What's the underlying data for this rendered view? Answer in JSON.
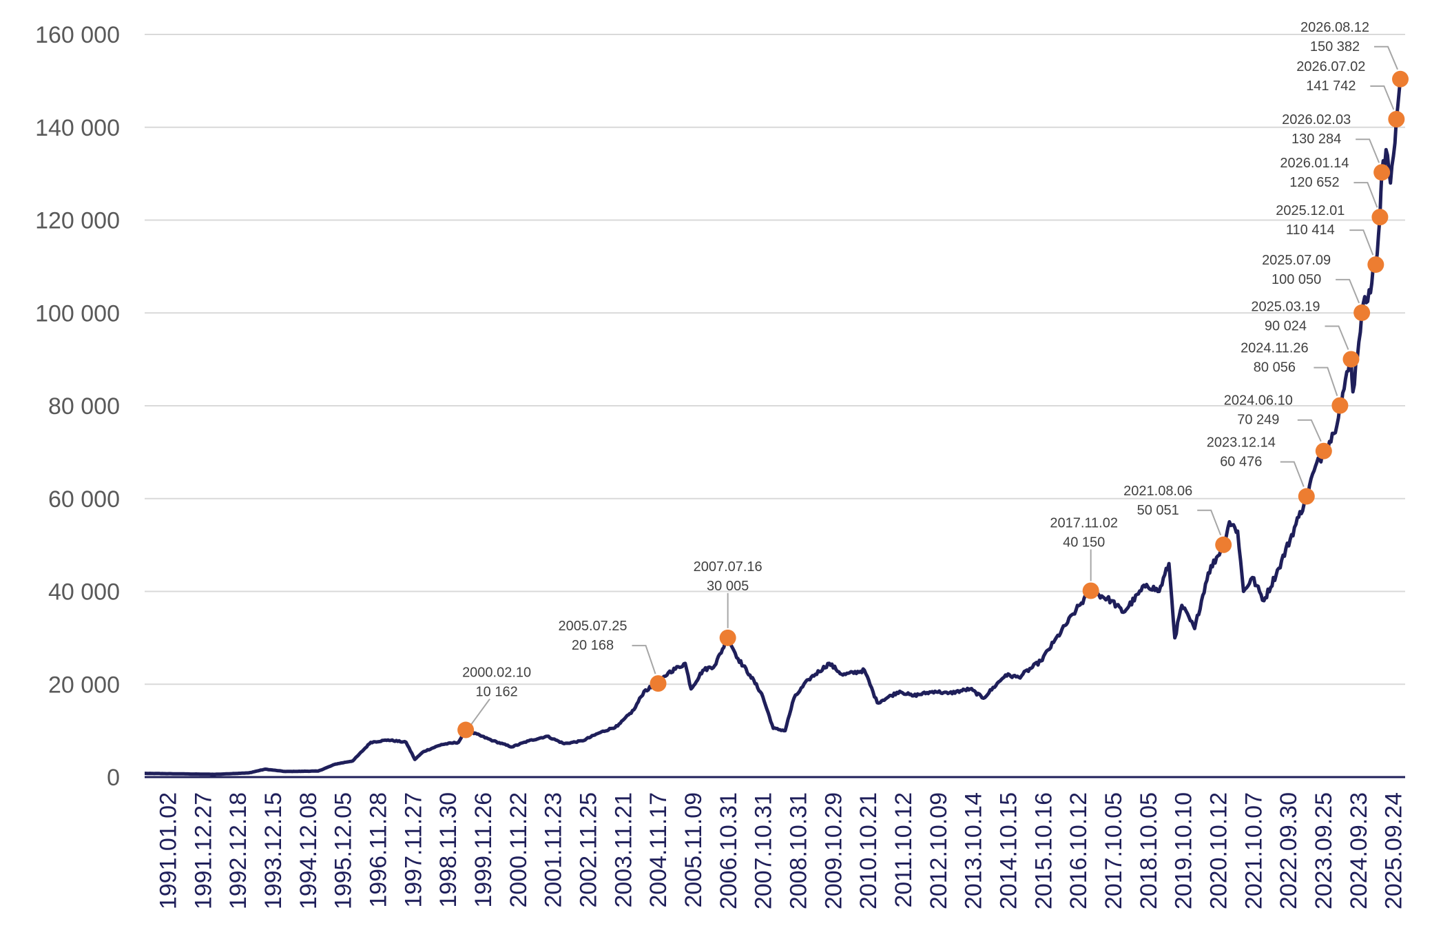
{
  "colors": {
    "line": "#1f1f5a",
    "marker": "#ed7d31",
    "grid": "#d9d9d9",
    "ytick_text": "#595959",
    "xtick_text": "#1f1f5a",
    "annotation_text": "#404040",
    "leader": "#a6a6a6"
  },
  "chart_data": {
    "type": "line",
    "title": "",
    "xlabel": "",
    "ylabel": "",
    "ylim": [
      0,
      160000
    ],
    "grid": true,
    "legend": "none",
    "y_ticks": [
      0,
      20000,
      40000,
      60000,
      80000,
      100000,
      120000,
      140000,
      160000
    ],
    "y_tick_labels": [
      "0",
      "20 000",
      "40 000",
      "60 000",
      "80 000",
      "100 000",
      "120 000",
      "140 000",
      "160 000"
    ],
    "x_tick_labels": [
      "1991.01.02",
      "1991.12.27",
      "1992.12.18",
      "1993.12.15",
      "1994.12.08",
      "1995.12.05",
      "1996.11.28",
      "1997.11.27",
      "1998.11.30",
      "1999.11.26",
      "2000.11.22",
      "2001.11.23",
      "2002.11.25",
      "2003.11.21",
      "2004.11.17",
      "2005.11.09",
      "2006.10.31",
      "2007.10.31",
      "2008.10.31",
      "2009.10.29",
      "2010.10.21",
      "2011.10.12",
      "2012.10.09",
      "2013.10.14",
      "2014.10.15",
      "2015.10.16",
      "2016.10.12",
      "2017.10.05",
      "2018.10.05",
      "2019.10.10",
      "2020.10.12",
      "2021.10.07",
      "2022.09.30",
      "2023.09.25",
      "2024.09.23",
      "2025.09.24"
    ],
    "series": [
      {
        "values": [
          [
            "1991.01.02",
            800
          ],
          [
            "1992.01.01",
            700
          ],
          [
            "1993.01.01",
            600
          ],
          [
            "1993.12.15",
            900
          ],
          [
            "1994.06.01",
            1700
          ],
          [
            "1995.01.01",
            1200
          ],
          [
            "1995.12.05",
            1300
          ],
          [
            "1996.06.01",
            2800
          ],
          [
            "1996.11.28",
            3500
          ],
          [
            "1997.06.01",
            7500
          ],
          [
            "1997.11.27",
            8000
          ],
          [
            "1998.06.01",
            7500
          ],
          [
            "1998.09.01",
            3800
          ],
          [
            "1998.11.30",
            5500
          ],
          [
            "1999.06.01",
            7000
          ],
          [
            "1999.11.26",
            7500
          ],
          [
            "2000.02.10",
            10162
          ],
          [
            "2000.11.22",
            7800
          ],
          [
            "2001.06.01",
            6500
          ],
          [
            "2001.11.23",
            7800
          ],
          [
            "2002.06.01",
            8800
          ],
          [
            "2002.11.25",
            7200
          ],
          [
            "2003.06.01",
            7800
          ],
          [
            "2003.11.21",
            9500
          ],
          [
            "2004.06.01",
            11000
          ],
          [
            "2004.11.17",
            14500
          ],
          [
            "2005.03.01",
            18500
          ],
          [
            "2005.07.25",
            20168
          ],
          [
            "2005.11.09",
            22500
          ],
          [
            "2006.05.01",
            24500
          ],
          [
            "2006.07.01",
            19000
          ],
          [
            "2006.10.31",
            23000
          ],
          [
            "2007.03.01",
            24000
          ],
          [
            "2007.07.16",
            30005
          ],
          [
            "2007.10.31",
            25500
          ],
          [
            "2008.03.01",
            22000
          ],
          [
            "2008.07.01",
            18000
          ],
          [
            "2008.10.31",
            10500
          ],
          [
            "2009.03.01",
            10000
          ],
          [
            "2009.06.01",
            17000
          ],
          [
            "2009.10.29",
            21000
          ],
          [
            "2010.06.01",
            24500
          ],
          [
            "2010.10.21",
            22000
          ],
          [
            "2011.06.01",
            23000
          ],
          [
            "2011.10.12",
            16000
          ],
          [
            "2012.06.01",
            18500
          ],
          [
            "2012.10.09",
            17500
          ],
          [
            "2013.06.01",
            18500
          ],
          [
            "2013.10.14",
            18000
          ],
          [
            "2014.06.01",
            19000
          ],
          [
            "2014.10.15",
            17000
          ],
          [
            "2015.06.01",
            22000
          ],
          [
            "2015.10.16",
            21500
          ],
          [
            "2016.06.01",
            25000
          ],
          [
            "2016.10.12",
            29000
          ],
          [
            "2017.06.01",
            36000
          ],
          [
            "2017.11.02",
            40150
          ],
          [
            "2018.06.01",
            38000
          ],
          [
            "2018.10.05",
            35500
          ],
          [
            "2019.06.01",
            41500
          ],
          [
            "2019.10.10",
            40000
          ],
          [
            "2020.01.20",
            46000
          ],
          [
            "2020.03.20",
            30000
          ],
          [
            "2020.06.01",
            37000
          ],
          [
            "2020.10.12",
            32000
          ],
          [
            "2021.03.01",
            44000
          ],
          [
            "2021.08.06",
            50051
          ],
          [
            "2021.10.07",
            55000
          ],
          [
            "2022.01.01",
            53000
          ],
          [
            "2022.03.01",
            40000
          ],
          [
            "2022.06.01",
            43000
          ],
          [
            "2022.09.30",
            38000
          ],
          [
            "2023.03.01",
            45000
          ],
          [
            "2023.09.25",
            56000
          ],
          [
            "2023.12.14",
            60476
          ],
          [
            "2024.03.01",
            66000
          ],
          [
            "2024.06.10",
            70249
          ],
          [
            "2024.09.23",
            74000
          ],
          [
            "2024.11.26",
            80056
          ],
          [
            "2025.03.19",
            90024
          ],
          [
            "2025.04.08",
            83000
          ],
          [
            "2025.07.09",
            100050
          ],
          [
            "2025.09.24",
            105000
          ],
          [
            "2025.12.01",
            110414
          ],
          [
            "2026.01.14",
            120652
          ],
          [
            "2026.02.03",
            130284
          ],
          [
            "2026.04.01",
            134000
          ],
          [
            "2026.05.01",
            128000
          ],
          [
            "2026.07.02",
            141742
          ],
          [
            "2026.08.12",
            150382
          ]
        ]
      }
    ],
    "annotations": [
      {
        "date": "2000.02.10",
        "value": "10 162",
        "y": 10162
      },
      {
        "date": "2005.07.25",
        "value": "20 168",
        "y": 20168
      },
      {
        "date": "2007.07.16",
        "value": "30 005",
        "y": 30005
      },
      {
        "date": "2017.11.02",
        "value": "40 150",
        "y": 40150
      },
      {
        "date": "2021.08.06",
        "value": "50 051",
        "y": 50051
      },
      {
        "date": "2023.12.14",
        "value": "60 476",
        "y": 60476
      },
      {
        "date": "2024.06.10",
        "value": "70 249",
        "y": 70249
      },
      {
        "date": "2024.11.26",
        "value": "80 056",
        "y": 80056
      },
      {
        "date": "2025.03.19",
        "value": "90 024",
        "y": 90024
      },
      {
        "date": "2025.07.09",
        "value": "100 050",
        "y": 100050
      },
      {
        "date": "2025.12.01",
        "value": "110 414",
        "y": 110414
      },
      {
        "date": "2026.01.14",
        "value": "120 652",
        "y": 120652
      },
      {
        "date": "2026.02.03",
        "value": "130 284",
        "y": 130284
      },
      {
        "date": "2026.07.02",
        "value": "141 742",
        "y": 141742
      },
      {
        "date": "2026.08.12",
        "value": "150 382",
        "y": 150382
      }
    ]
  }
}
